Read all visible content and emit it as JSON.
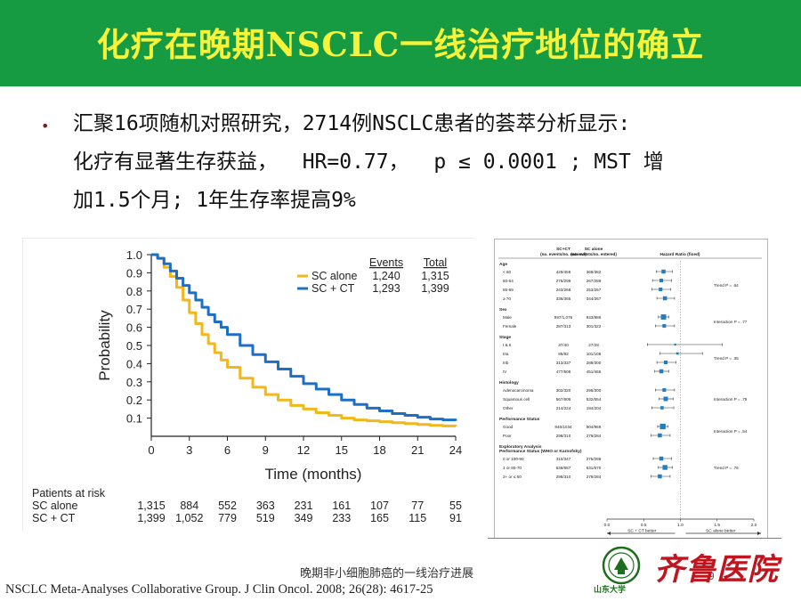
{
  "slide": {
    "title": "化疗在晚期NSCLC一线治疗地位的确立",
    "bullet_marker": "•",
    "bullet_lines": [
      "汇聚16项随机对照研究，2714例NSCLC患者的荟萃分析显示:",
      "化疗有显著生存获益，  HR=0.77，  p ≤ 0.0001 ; MST 增",
      "加1.5个月; 1年生存率提高9%"
    ],
    "footer_caption": "晚期非小细胞肺癌的一线治疗进展",
    "page_number": "9",
    "citation": "NSCLC Meta-Analyses Collaborative Group. J Clin Oncol. 2008; 26(28): 4617-25",
    "logo_seal_text": "山东大学",
    "logo_script_text": "齐鲁医院",
    "colors": {
      "title_bar": "#169b42",
      "title_text": "#f7f33a",
      "sc_alone": "#f2b71b",
      "sc_ct": "#1c6fc4",
      "forest_box": "#1f7fc2",
      "logo_red": "#c0141e",
      "logo_green": "#1d6e1d"
    }
  },
  "chart_data": [
    {
      "type": "line",
      "xlabel": "Time (months)",
      "ylabel": "Probability",
      "x_ticks": [
        0,
        3,
        6,
        9,
        12,
        15,
        18,
        21,
        24
      ],
      "y_ticks": [
        0.1,
        0.2,
        0.3,
        0.4,
        0.5,
        0.6,
        0.7,
        0.8,
        0.9,
        1.0
      ],
      "xlim": [
        0,
        24
      ],
      "ylim": [
        0,
        1.0
      ],
      "legend_headers": [
        "Events",
        "Total"
      ],
      "series": [
        {
          "name": "SC alone",
          "events": "1,240",
          "total": "1,315",
          "color": "#f2b71b",
          "x": [
            0,
            0.5,
            1,
            1.5,
            2,
            2.5,
            3,
            3.5,
            4,
            4.5,
            5,
            5.5,
            6,
            7,
            8,
            9,
            10,
            11,
            12,
            13,
            14,
            15,
            16,
            17,
            18,
            19,
            20,
            21,
            22,
            23,
            24
          ],
          "y": [
            1.0,
            0.98,
            0.93,
            0.88,
            0.82,
            0.75,
            0.68,
            0.62,
            0.56,
            0.51,
            0.46,
            0.42,
            0.38,
            0.32,
            0.27,
            0.23,
            0.2,
            0.17,
            0.15,
            0.13,
            0.115,
            0.1,
            0.09,
            0.085,
            0.08,
            0.075,
            0.07,
            0.065,
            0.06,
            0.057,
            0.055
          ]
        },
        {
          "name": "SC + CT",
          "events": "1,293",
          "total": "1,399",
          "color": "#1c6fc4",
          "x": [
            0,
            0.5,
            1,
            1.5,
            2,
            2.5,
            3,
            3.5,
            4,
            4.5,
            5,
            5.5,
            6,
            7,
            8,
            9,
            10,
            11,
            12,
            13,
            14,
            15,
            16,
            17,
            18,
            19,
            20,
            21,
            22,
            23,
            24
          ],
          "y": [
            1.0,
            0.98,
            0.95,
            0.91,
            0.87,
            0.83,
            0.79,
            0.75,
            0.71,
            0.67,
            0.63,
            0.6,
            0.56,
            0.5,
            0.45,
            0.41,
            0.37,
            0.33,
            0.29,
            0.26,
            0.23,
            0.2,
            0.175,
            0.155,
            0.14,
            0.125,
            0.115,
            0.105,
            0.095,
            0.09,
            0.085
          ]
        }
      ],
      "risk_table": {
        "header": "Patients at risk",
        "rows": [
          {
            "label": "SC alone",
            "values": [
              "1,315",
              "884",
              "552",
              "363",
              "231",
              "161",
              "107",
              "77",
              "55"
            ]
          },
          {
            "label": "SC + CT",
            "values": [
              "1,399",
              "1,052",
              "779",
              "519",
              "349",
              "233",
              "165",
              "115",
              "91"
            ]
          }
        ]
      }
    },
    {
      "type": "forest",
      "col_headers": [
        "SC+CT\n(no. events/no. entered)",
        "SC alone\n(no. events/no. entered)",
        "Hazard Ratio (fixed)"
      ],
      "xlim": [
        0,
        2.0
      ],
      "x_ticks": [
        "0.0",
        "0.5",
        "1.0",
        "1.5",
        "2.0"
      ],
      "favours_left": "SC + CT better",
      "favours_right": "SC alone better",
      "groups": [
        {
          "heading": "Age",
          "note": "Trend P = .64",
          "rows": [
            {
              "label": "< 60",
              "ct": "429/456",
              "sc": "368/382",
              "hr": 0.77,
              "lo": 0.67,
              "hi": 0.89,
              "size": 1.0
            },
            {
              "label": "60-64",
              "ct": "275/299",
              "sc": "267/289",
              "hr": 0.74,
              "lo": 0.62,
              "hi": 0.88,
              "size": 0.9
            },
            {
              "label": "65-69",
              "ct": "243/268",
              "sc": "253/267",
              "hr": 0.73,
              "lo": 0.61,
              "hi": 0.87,
              "size": 0.9
            },
            {
              "label": "≥ 70",
              "ct": "336/365",
              "sc": "344/367",
              "hr": 0.79,
              "lo": 0.68,
              "hi": 0.92,
              "size": 1.0
            }
          ]
        },
        {
          "heading": "Sex",
          "note": "Interaction P = .77",
          "rows": [
            {
              "label": "Male",
              "ct": "997/1,076",
              "sc": "933/986",
              "hr": 0.77,
              "lo": 0.7,
              "hi": 0.84,
              "size": 1.3
            },
            {
              "label": "Female",
              "ct": "287/313",
              "sc": "301/322",
              "hr": 0.78,
              "lo": 0.66,
              "hi": 0.92,
              "size": 0.9
            }
          ]
        },
        {
          "heading": "Stage",
          "note": "Trend P = .35",
          "rows": [
            {
              "label": "I & II",
              "ct": "37/40",
              "sc": "27/28",
              "hr": 0.93,
              "lo": 0.55,
              "hi": 1.57,
              "size": 0.5
            },
            {
              "label": "IIIa",
              "ct": "86/92",
              "sc": "101/106",
              "hr": 0.96,
              "lo": 0.72,
              "hi": 1.3,
              "size": 0.6
            },
            {
              "label": "IIIb",
              "ct": "313/337",
              "sc": "289/300",
              "hr": 0.8,
              "lo": 0.68,
              "hi": 0.94,
              "size": 0.9
            },
            {
              "label": "IV",
              "ct": "477/508",
              "sc": "451/466",
              "hr": 0.74,
              "lo": 0.65,
              "hi": 0.84,
              "size": 1.0
            }
          ]
        },
        {
          "heading": "Histology",
          "note": "Interaction P = .75",
          "rows": [
            {
              "label": "Adenocarcinoma",
              "ct": "302/320",
              "sc": "295/300",
              "hr": 0.78,
              "lo": 0.66,
              "hi": 0.92,
              "size": 0.9
            },
            {
              "label": "Squamous cell",
              "ct": "567/605",
              "sc": "532/554",
              "hr": 0.8,
              "lo": 0.71,
              "hi": 0.9,
              "size": 1.1
            },
            {
              "label": "Other",
              "ct": "214/224",
              "sc": "194/204",
              "hr": 0.75,
              "lo": 0.61,
              "hi": 0.91,
              "size": 0.8
            }
          ]
        },
        {
          "heading": "Performance Status",
          "note": "Interaction P = .54",
          "rows": [
            {
              "label": "Good",
              "ct": "946/1034",
              "sc": "904/969",
              "hr": 0.76,
              "lo": 0.69,
              "hi": 0.83,
              "size": 1.4
            },
            {
              "label": "Poor",
              "ct": "298/310",
              "sc": "279/284",
              "hr": 0.72,
              "lo": 0.6,
              "hi": 0.86,
              "size": 1.0
            }
          ]
        },
        {
          "heading": "Exploratory Analysis\nPerformance Status (WHO or Karnofsky)",
          "note": "Trend P = .76",
          "rows": [
            {
              "label": "0 or 100-90",
              "ct": "310/347",
              "sc": "275/299",
              "hr": 0.74,
              "lo": 0.63,
              "hi": 0.88,
              "size": 1.0
            },
            {
              "label": "1 or 80-70",
              "ct": "636/687",
              "sc": "631/670",
              "hr": 0.79,
              "lo": 0.7,
              "hi": 0.89,
              "size": 1.2
            },
            {
              "label": "2+ or ≤ 60",
              "ct": "298/310",
              "sc": "279/284",
              "hr": 0.72,
              "lo": 0.6,
              "hi": 0.86,
              "size": 1.0
            }
          ]
        }
      ]
    }
  ]
}
